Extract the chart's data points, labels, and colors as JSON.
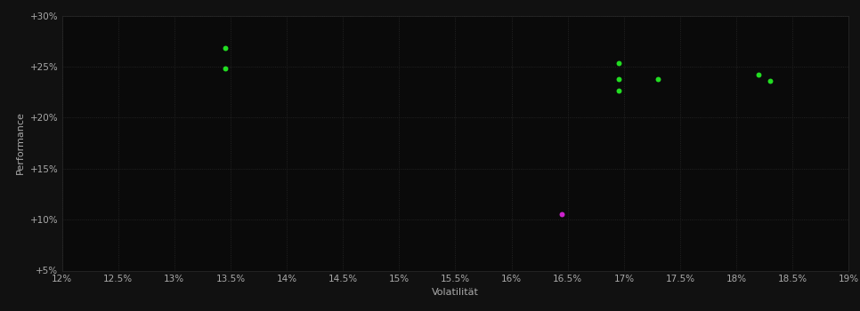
{
  "bg_color": "#111111",
  "plot_bg_color": "#0a0a0a",
  "grid_color": "#2a2a2a",
  "text_color": "#aaaaaa",
  "xlabel": "Volatilität",
  "ylabel": "Performance",
  "xlim": [
    0.12,
    0.19
  ],
  "ylim": [
    0.05,
    0.3
  ],
  "xticks": [
    0.12,
    0.125,
    0.13,
    0.135,
    0.14,
    0.145,
    0.15,
    0.155,
    0.16,
    0.165,
    0.17,
    0.175,
    0.18,
    0.185,
    0.19
  ],
  "yticks": [
    0.05,
    0.1,
    0.15,
    0.2,
    0.25,
    0.3
  ],
  "xtick_labels": [
    "12%",
    "12.5%",
    "13%",
    "13.5%",
    "14%",
    "14.5%",
    "15%",
    "15.5%",
    "16%",
    "16.5%",
    "17%",
    "17.5%",
    "18%",
    "18.5%",
    "19%"
  ],
  "ytick_labels": [
    "+5%",
    "+10%",
    "+15%",
    "+20%",
    "+25%",
    "+30%"
  ],
  "green_points": [
    [
      0.1345,
      0.268
    ],
    [
      0.1345,
      0.248
    ],
    [
      0.1695,
      0.253
    ],
    [
      0.1695,
      0.238
    ],
    [
      0.1695,
      0.226
    ],
    [
      0.173,
      0.238
    ],
    [
      0.182,
      0.242
    ],
    [
      0.183,
      0.236
    ]
  ],
  "magenta_points": [
    [
      0.1645,
      0.105
    ]
  ],
  "point_color_green": "#22dd22",
  "point_color_magenta": "#cc22cc",
  "point_size": 18,
  "axis_fontsize": 8,
  "tick_fontsize": 7.5
}
